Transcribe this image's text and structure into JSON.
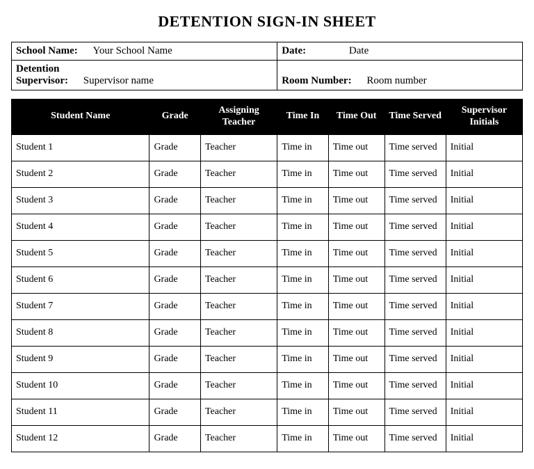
{
  "title": "DETENTION SIGN-IN SHEET",
  "info": {
    "schoolNameLabel": "School Name:",
    "schoolNameValue": "Your School Name",
    "dateLabel": "Date:",
    "dateValue": "Date",
    "supervisorLabel": "Detention Supervisor:",
    "supervisorLabelLine1": "Detention",
    "supervisorLabelLine2": "Supervisor:",
    "supervisorValue": "Supervisor name",
    "roomLabel": "Room Number:",
    "roomValue": "Room number"
  },
  "columns": [
    "Student Name",
    "Grade",
    "Assigning Teacher",
    "Time In",
    "Time Out",
    "Time Served",
    "Supervisor Initials"
  ],
  "columnsDisplay": {
    "c0": "Student Name",
    "c1": "Grade",
    "c2": "Assigning Teacher",
    "c3": "Time In",
    "c4": "Time Out",
    "c5": "Time Served",
    "c6": "Supervisor Initials"
  },
  "rows": [
    {
      "name": "Student 1",
      "grade": "Grade",
      "teacher": "Teacher",
      "timeIn": "Time in",
      "timeOut": "Time out",
      "served": "Time served",
      "initials": "Initial"
    },
    {
      "name": "Student 2",
      "grade": "Grade",
      "teacher": "Teacher",
      "timeIn": "Time in",
      "timeOut": "Time out",
      "served": "Time served",
      "initials": "Initial"
    },
    {
      "name": "Student 3",
      "grade": "Grade",
      "teacher": "Teacher",
      "timeIn": "Time in",
      "timeOut": "Time out",
      "served": "Time served",
      "initials": "Initial"
    },
    {
      "name": "Student 4",
      "grade": "Grade",
      "teacher": "Teacher",
      "timeIn": "Time in",
      "timeOut": "Time out",
      "served": "Time served",
      "initials": "Initial"
    },
    {
      "name": "Student 5",
      "grade": "Grade",
      "teacher": "Teacher",
      "timeIn": "Time in",
      "timeOut": "Time out",
      "served": "Time served",
      "initials": "Initial"
    },
    {
      "name": "Student 6",
      "grade": "Grade",
      "teacher": "Teacher",
      "timeIn": "Time in",
      "timeOut": "Time out",
      "served": "Time served",
      "initials": "Initial"
    },
    {
      "name": "Student 7",
      "grade": "Grade",
      "teacher": "Teacher",
      "timeIn": "Time in",
      "timeOut": "Time out",
      "served": "Time served",
      "initials": "Initial"
    },
    {
      "name": "Student 8",
      "grade": "Grade",
      "teacher": "Teacher",
      "timeIn": "Time in",
      "timeOut": "Time out",
      "served": "Time served",
      "initials": "Initial"
    },
    {
      "name": "Student 9",
      "grade": "Grade",
      "teacher": "Teacher",
      "timeIn": "Time in",
      "timeOut": "Time out",
      "served": "Time served",
      "initials": "Initial"
    },
    {
      "name": "Student 10",
      "grade": "Grade",
      "teacher": "Teacher",
      "timeIn": "Time in",
      "timeOut": "Time out",
      "served": "Time served",
      "initials": "Initial"
    },
    {
      "name": "Student 11",
      "grade": "Grade",
      "teacher": "Teacher",
      "timeIn": "Time in",
      "timeOut": "Time out",
      "served": "Time served",
      "initials": "Initial"
    },
    {
      "name": "Student 12",
      "grade": "Grade",
      "teacher": "Teacher",
      "timeIn": "Time in",
      "timeOut": "Time out",
      "served": "Time served",
      "initials": "Initial"
    }
  ],
  "styling": {
    "headerBg": "#000000",
    "headerFg": "#ffffff",
    "borderColor": "#000000",
    "pageBg": "#ffffff",
    "titleFontSize": 22,
    "bodyFontSize": 14,
    "fontFamily": "Times New Roman"
  }
}
